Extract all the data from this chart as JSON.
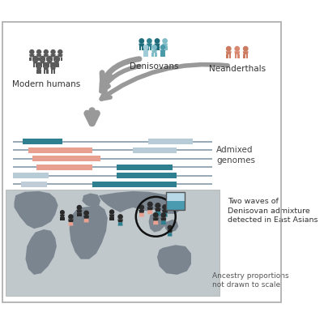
{
  "bg_color": "#ffffff",
  "border_color": "#aaaaaa",
  "figure_size": [
    4.0,
    4.02
  ],
  "dpi": 100,
  "modern_humans_label": "Modern humans",
  "denisovans_label": "Denisovans",
  "neanderthals_label": "Neanderthals",
  "admixed_label": "Admixed\ngenomes",
  "two_waves_label": "Two waves of\nDenisovan admixture\ndetected in East Asians",
  "ancestry_label": "Ancestry proportions\nnot drawn to scale",
  "color_dark_gray": "#5a5a5a",
  "color_teal_dark": "#1e6b7a",
  "color_teal": "#2e8090",
  "color_teal_mid": "#4a9aaa",
  "color_teal_light": "#7fbcc8",
  "color_teal_vlight": "#a0ccd8",
  "color_salmon": "#e8a090",
  "color_salmon_light": "#f0b8aa",
  "color_neanderthal": "#cc7a60",
  "color_neanderthal2": "#d98870",
  "color_arrow": "#999999",
  "color_map_bg": "#c0c8cc",
  "color_continent": "#7a8590",
  "color_circle": "#222222",
  "bar_color_main": "#9aabb8",
  "bar_color_teal": "#2e8090",
  "bar_color_salmon": "#e8a090",
  "bar_color_light_blue": "#b8ccd8",
  "bar_color_light_gray": "#c0ccd8",
  "bar_color_dark": "#608090"
}
